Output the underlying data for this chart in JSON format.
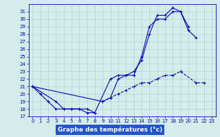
{
  "bg_color": "#d4ecec",
  "grid_color": "#b0d4d4",
  "line_color": "#0000bb",
  "xlabel": "Graphe des températures (°c)",
  "xlabel_bg": "#2255cc",
  "xlabel_fg": "#ffffff",
  "xlim": [
    -0.5,
    23.5
  ],
  "ylim": [
    17,
    32
  ],
  "yticks": [
    17,
    18,
    19,
    20,
    21,
    22,
    23,
    24,
    25,
    26,
    27,
    28,
    29,
    30,
    31
  ],
  "xticks": [
    0,
    1,
    2,
    3,
    4,
    5,
    6,
    7,
    8,
    9,
    10,
    11,
    12,
    13,
    14,
    15,
    16,
    17,
    18,
    19,
    20,
    21,
    22,
    23
  ],
  "seg_early_x": [
    0,
    1,
    2,
    3,
    4,
    5,
    6,
    7,
    8
  ],
  "seg_early_y": [
    21,
    20,
    19,
    18,
    18,
    18,
    18,
    17.5,
    17.5
  ],
  "seg_top_x": [
    0,
    3,
    4,
    5,
    6,
    7,
    8,
    10,
    11,
    12,
    13,
    14,
    15,
    16,
    17,
    18,
    19,
    20,
    21
  ],
  "seg_top_y": [
    21,
    19,
    18,
    18,
    18,
    18,
    17.5,
    22,
    22.5,
    22.5,
    23,
    24.5,
    28,
    30.5,
    30.5,
    31.5,
    31,
    28.5,
    27.5
  ],
  "seg_mid_x": [
    0,
    9,
    10,
    11,
    12,
    13,
    14,
    15,
    16,
    17,
    18,
    19,
    20
  ],
  "seg_mid_y": [
    21,
    19,
    19.5,
    22,
    22.5,
    22.5,
    25,
    29,
    30,
    30,
    31,
    31,
    29
  ],
  "seg_bot_x": [
    9,
    10,
    11,
    12,
    13,
    14,
    15,
    16,
    17,
    18,
    19,
    21,
    22
  ],
  "seg_bot_y": [
    19,
    19.5,
    20,
    20.5,
    21,
    21.5,
    21.5,
    22,
    22.5,
    22.5,
    23,
    21.5,
    21.5
  ],
  "tick_fontsize": 5,
  "lw": 0.8,
  "ms": 3
}
